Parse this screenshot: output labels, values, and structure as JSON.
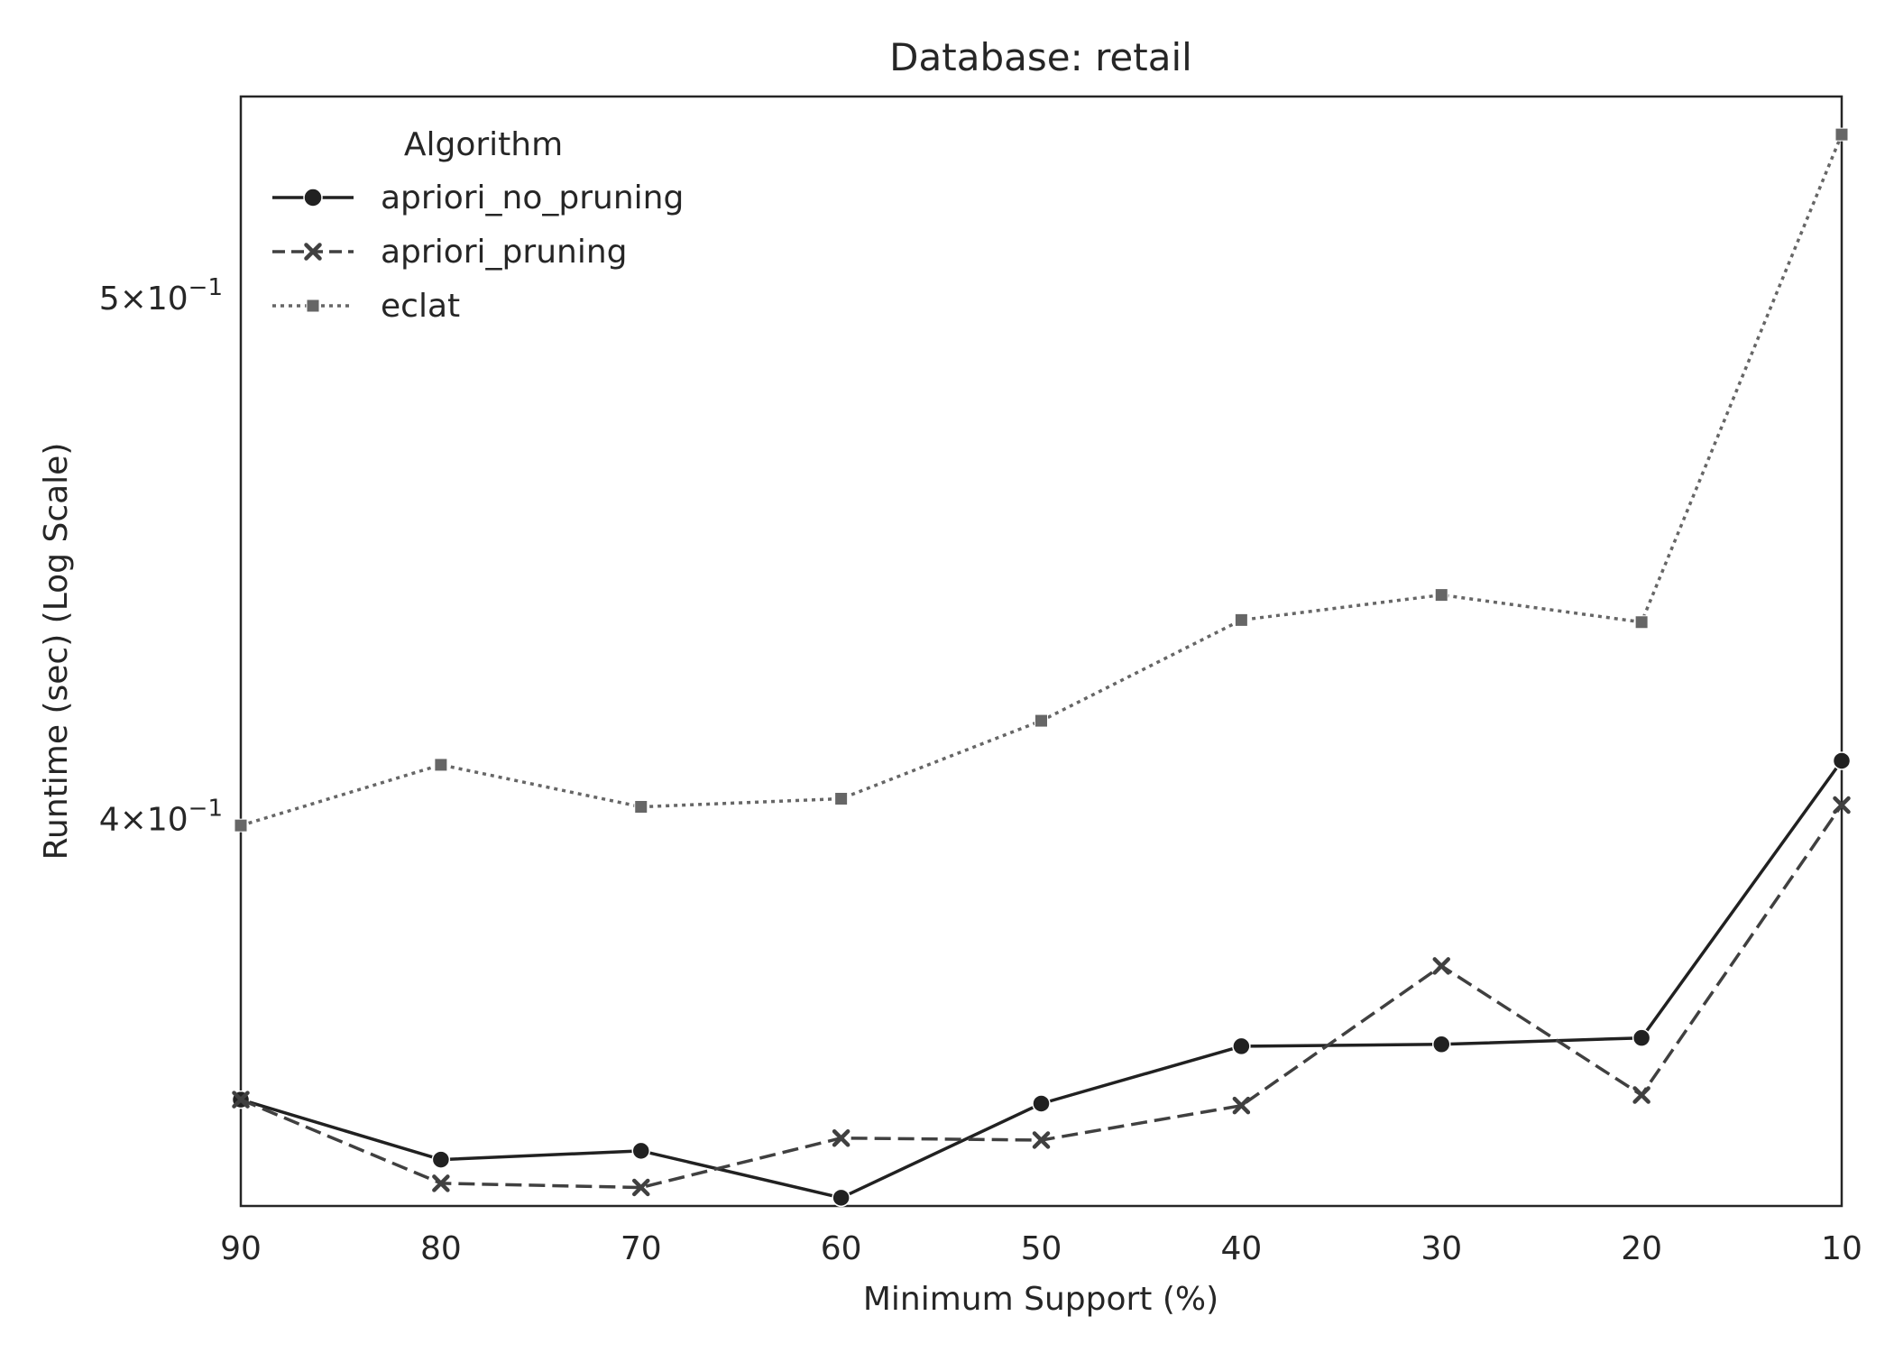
{
  "chart_data": {
    "type": "line",
    "title": "Database: retail",
    "xlabel": "Minimum Support (%)",
    "ylabel": "Runtime (sec) (Log Scale)",
    "x": [
      90,
      80,
      70,
      60,
      50,
      40,
      30,
      20,
      10
    ],
    "x_ticks": [
      "90",
      "80",
      "70",
      "60",
      "50",
      "40",
      "30",
      "20",
      "10"
    ],
    "xlim": [
      90,
      10
    ],
    "y_scale": "log",
    "ylim": [
      0.339,
      0.5452
    ],
    "y_ticks": [
      {
        "value": 0.5,
        "mantissa": "5",
        "exponent": "−1"
      },
      {
        "value": 0.4,
        "mantissa": "4",
        "exponent": "−1"
      }
    ],
    "grid": false,
    "legend": {
      "title": "Algorithm",
      "position": "top-left"
    },
    "series": [
      {
        "name": "apriori_no_pruning",
        "color": "#212121",
        "linestyle": "solid",
        "marker": "circle",
        "values": [
          0.3548,
          0.3458,
          0.3471,
          0.3402,
          0.3542,
          0.363,
          0.3633,
          0.3643,
          0.4102
        ]
      },
      {
        "name": "apriori_pruning",
        "color": "#404040",
        "linestyle": "dashed",
        "marker": "x",
        "values": [
          0.3548,
          0.3423,
          0.3417,
          0.349,
          0.3487,
          0.3539,
          0.3757,
          0.3555,
          0.4025
        ]
      },
      {
        "name": "eclat",
        "color": "#666666",
        "linestyle": "dotted",
        "marker": "square",
        "values": [
          0.399,
          0.4095,
          0.4022,
          0.4036,
          0.4173,
          0.4357,
          0.4404,
          0.4353,
          0.5364
        ]
      }
    ]
  }
}
